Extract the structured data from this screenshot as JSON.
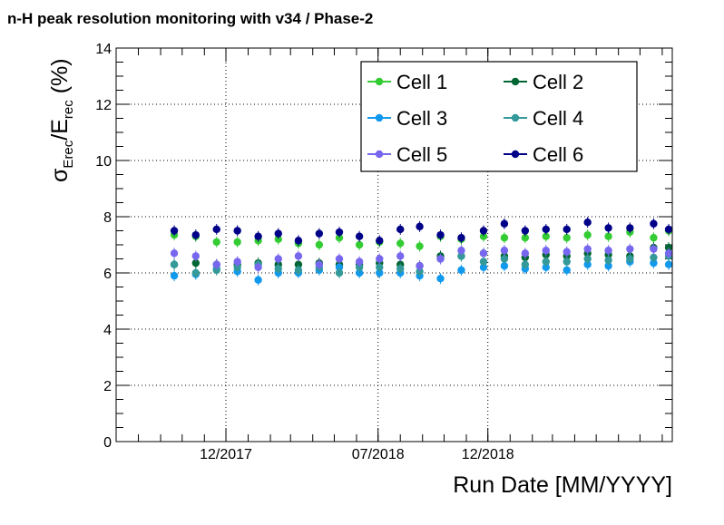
{
  "chart_data": {
    "type": "scatter",
    "title": "n-H peak resolution monitoring with v34 / Phase-2",
    "xlabel": "Run Date [MM/YYYY]",
    "ylabel": {
      "sigma": "σ",
      "sigma_sub": "Erec",
      "slash_E": "/E",
      "E_sub": "rec",
      "unit": " (%)"
    },
    "ylim": [
      0,
      14
    ],
    "yticks": [
      "0",
      "2",
      "4",
      "6",
      "8",
      "10",
      "12",
      "14"
    ],
    "xlim": [
      "2017-07-01",
      "2019-08-15"
    ],
    "xticks": [
      {
        "date": "2017-12-01",
        "label": "12/2017"
      },
      {
        "date": "2018-07-01",
        "label": "07/2018"
      },
      {
        "date": "2018-12-01",
        "label": "12/2018"
      }
    ],
    "grid": true,
    "legend_position": "top-right",
    "dates": [
      "2017-09-20",
      "2017-10-20",
      "2017-11-18",
      "2017-12-17",
      "2018-01-15",
      "2018-02-12",
      "2018-03-12",
      "2018-04-10",
      "2018-05-08",
      "2018-06-05",
      "2018-07-03",
      "2018-08-01",
      "2018-08-28",
      "2018-09-26",
      "2018-10-25",
      "2018-11-25",
      "2018-12-24",
      "2019-01-22",
      "2019-02-20",
      "2019-03-21",
      "2019-04-19",
      "2019-05-18",
      "2019-06-17",
      "2019-07-20",
      "2019-08-10"
    ],
    "series": [
      {
        "name": "Cell 1",
        "color": "#33cc33",
        "values": [
          7.35,
          7.3,
          7.1,
          7.1,
          7.15,
          7.2,
          7.05,
          7.0,
          7.25,
          7.0,
          7.1,
          7.05,
          6.95,
          7.3,
          7.2,
          7.3,
          7.25,
          7.25,
          7.3,
          7.25,
          7.35,
          7.3,
          7.45,
          7.25,
          7.5
        ]
      },
      {
        "name": "Cell 2",
        "color": "#006633",
        "values": [
          6.3,
          6.35,
          6.3,
          6.3,
          6.35,
          6.3,
          6.3,
          6.35,
          6.3,
          6.3,
          6.35,
          6.3,
          6.25,
          6.6,
          6.6,
          6.7,
          6.6,
          6.55,
          6.65,
          6.6,
          6.7,
          6.65,
          6.6,
          6.9,
          6.9
        ]
      },
      {
        "name": "Cell 3",
        "color": "#1199ee",
        "values": [
          5.9,
          5.95,
          6.15,
          6.05,
          5.75,
          6.0,
          6.0,
          6.1,
          6.2,
          6.0,
          6.0,
          6.0,
          5.9,
          5.8,
          6.1,
          6.2,
          6.25,
          6.15,
          6.2,
          6.1,
          6.3,
          6.25,
          6.4,
          6.35,
          6.3
        ]
      },
      {
        "name": "Cell 4",
        "color": "#339999",
        "values": [
          6.3,
          6.0,
          6.1,
          6.2,
          6.3,
          6.15,
          6.1,
          6.2,
          6.0,
          6.2,
          6.2,
          6.15,
          6.05,
          6.5,
          6.6,
          6.4,
          6.5,
          6.3,
          6.4,
          6.4,
          6.5,
          6.45,
          6.5,
          6.55,
          6.6
        ]
      },
      {
        "name": "Cell 5",
        "color": "#7766ee",
        "values": [
          6.7,
          6.6,
          6.3,
          6.4,
          6.2,
          6.5,
          6.6,
          6.3,
          6.5,
          6.4,
          6.5,
          6.6,
          6.25,
          6.5,
          6.8,
          6.7,
          6.8,
          6.7,
          6.8,
          6.75,
          6.85,
          6.8,
          6.85,
          6.85,
          6.7
        ]
      },
      {
        "name": "Cell 6",
        "color": "#000088",
        "values": [
          7.5,
          7.35,
          7.55,
          7.5,
          7.3,
          7.4,
          7.15,
          7.4,
          7.45,
          7.3,
          7.15,
          7.55,
          7.65,
          7.35,
          7.25,
          7.5,
          7.75,
          7.5,
          7.55,
          7.55,
          7.8,
          7.6,
          7.6,
          7.75,
          7.55
        ]
      }
    ]
  }
}
